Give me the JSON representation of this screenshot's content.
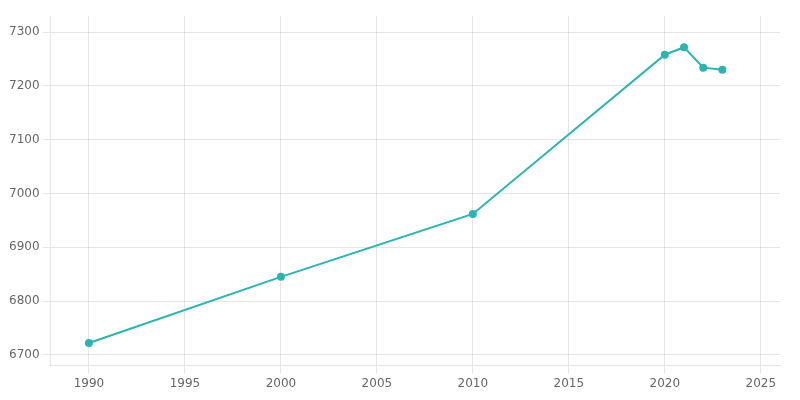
{
  "chart_data": {
    "type": "line",
    "x": [
      1990,
      2000,
      2010,
      2020,
      2021,
      2022,
      2023
    ],
    "values": [
      6722,
      6845,
      6962,
      7258,
      7272,
      7234,
      7230
    ],
    "color": "#2ab5b0",
    "marker": "o",
    "xlim": [
      1988,
      2026
    ],
    "ylim": [
      6680,
      7330
    ],
    "xticks": [
      1990,
      1995,
      2000,
      2005,
      2010,
      2015,
      2020,
      2025
    ],
    "yticks": [
      6700,
      6800,
      6900,
      7000,
      7100,
      7200,
      7300
    ],
    "grid": true
  }
}
